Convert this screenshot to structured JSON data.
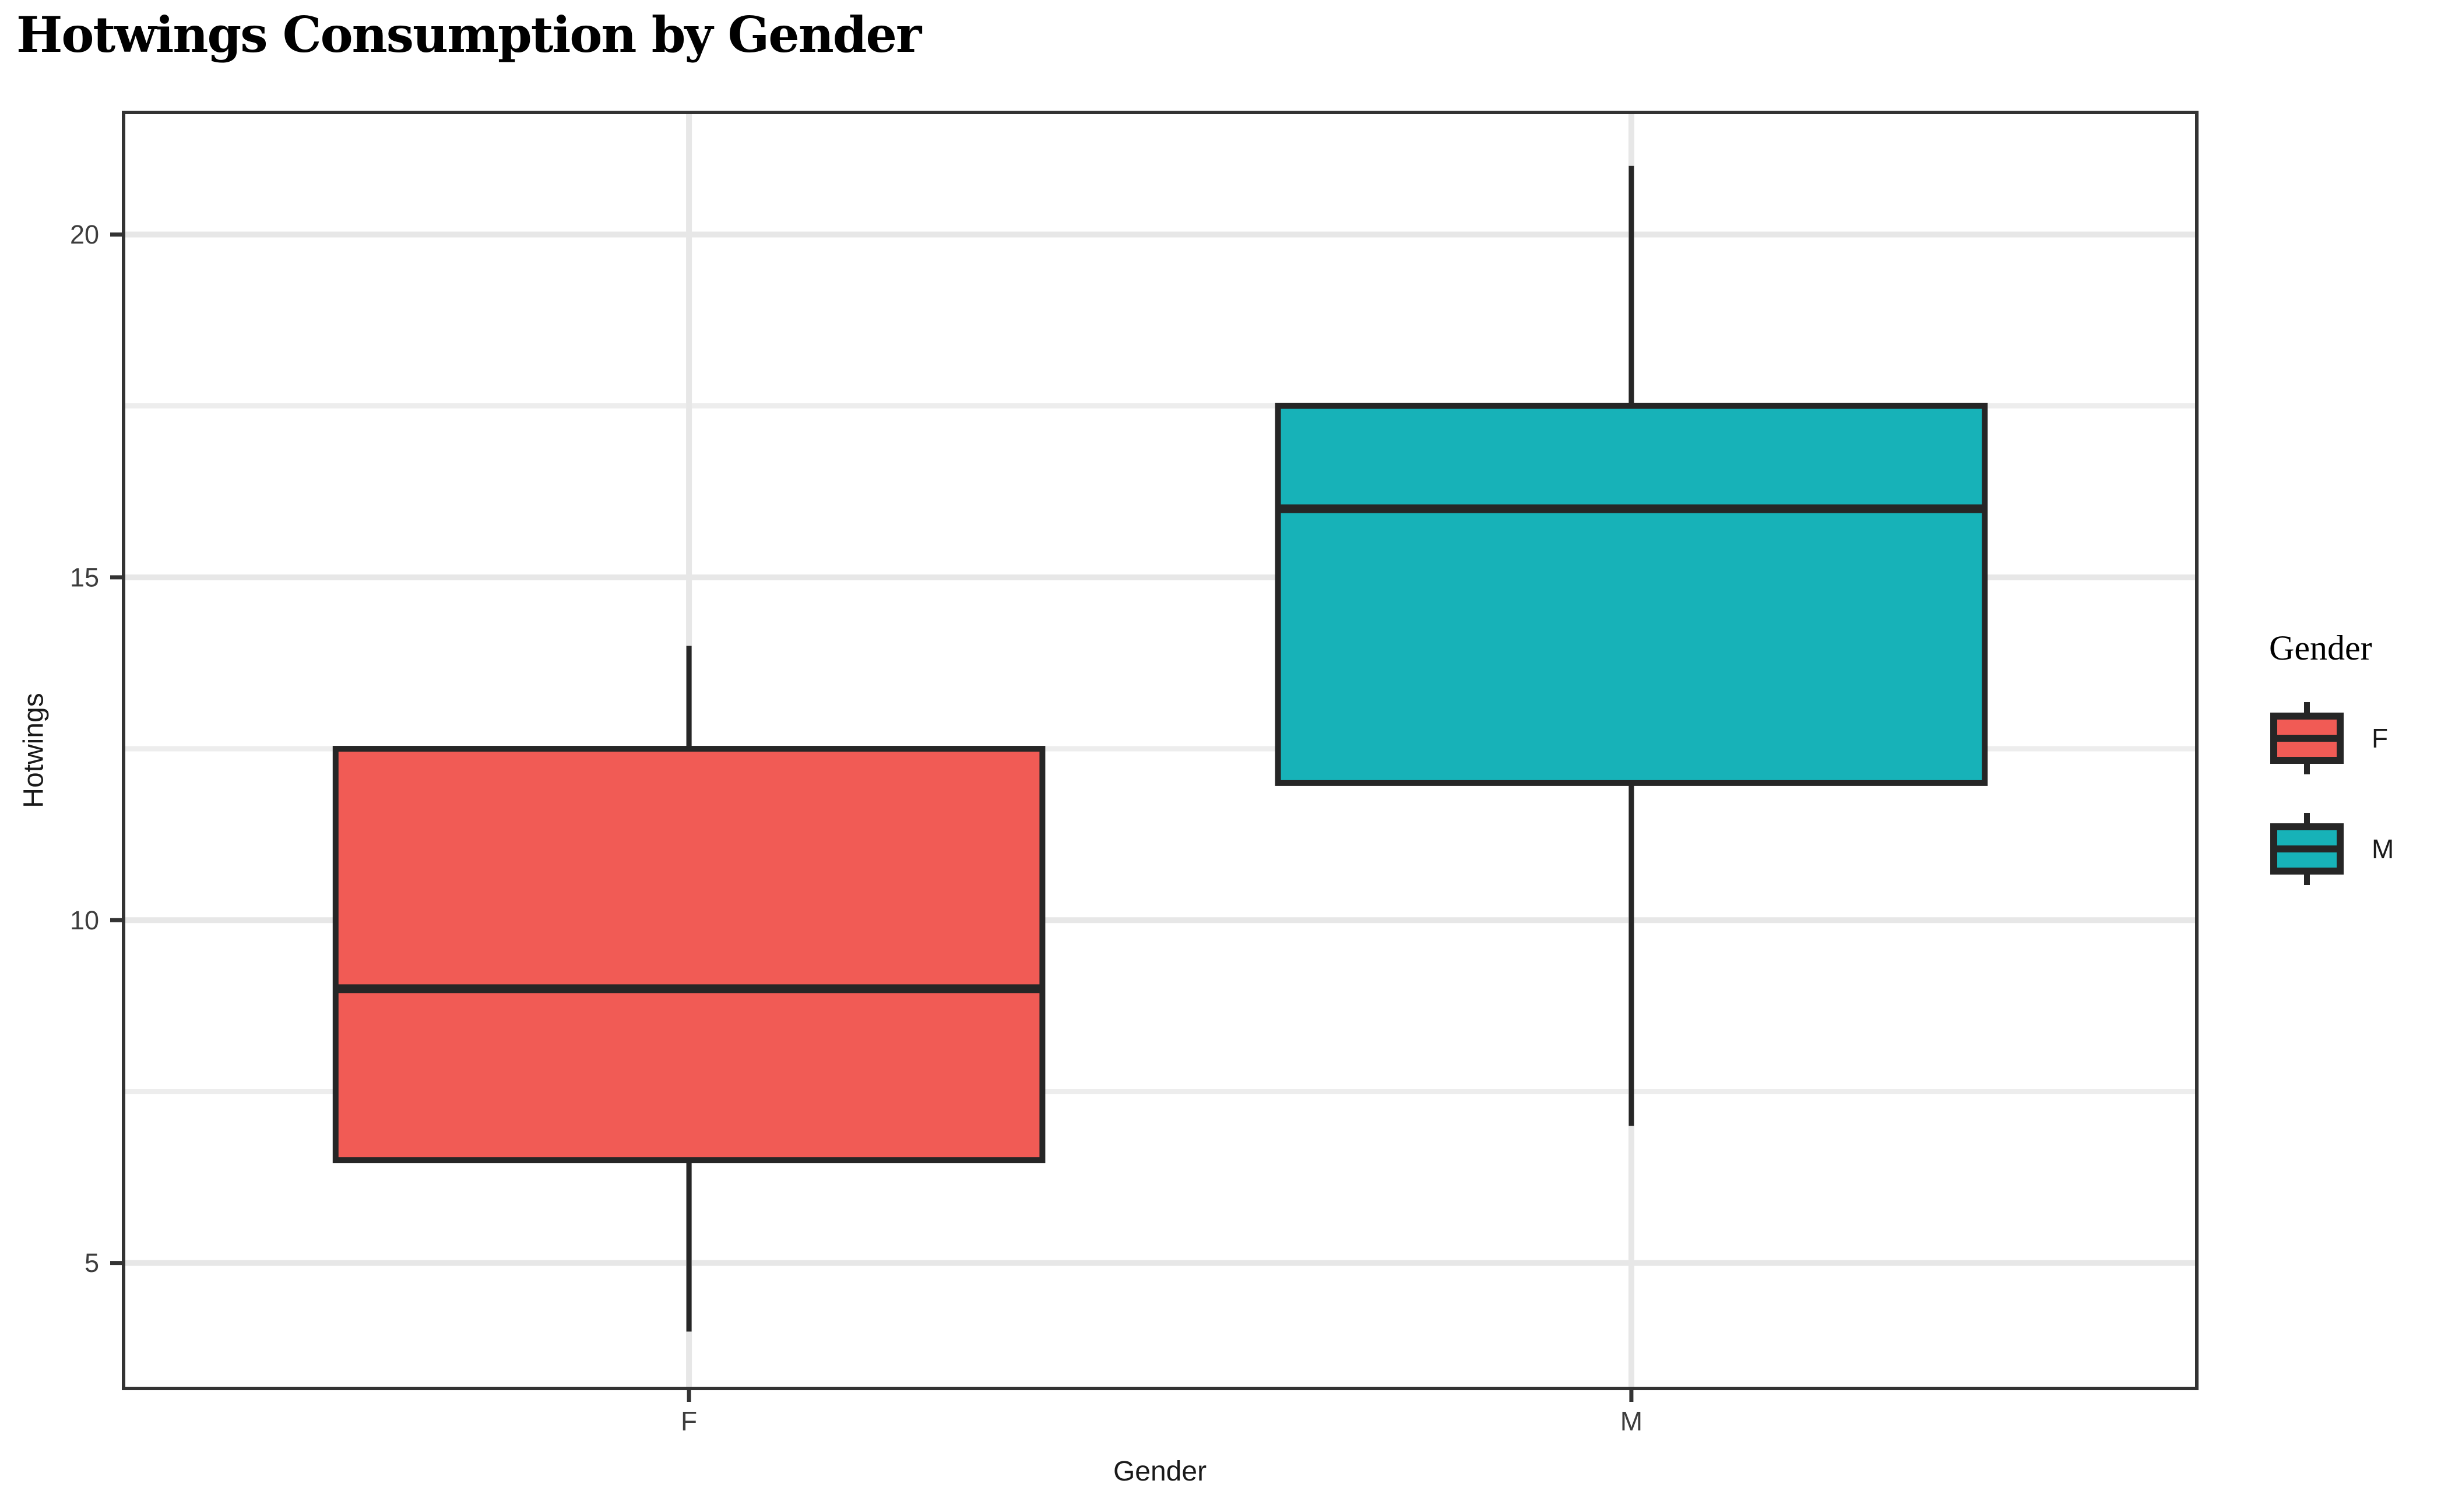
{
  "chart_data": {
    "type": "boxplot",
    "title": "Hotwings Consumption by Gender",
    "xlabel": "Gender",
    "ylabel": "Hotwings",
    "categories": [
      "F",
      "M"
    ],
    "series": [
      {
        "name": "F",
        "min": 4,
        "q1": 6.5,
        "median": 9,
        "q3": 12.5,
        "max": 14,
        "fill": "#F15B55"
      },
      {
        "name": "M",
        "min": 7,
        "q1": 12,
        "median": 16,
        "q3": 17.5,
        "max": 21,
        "fill": "#17B2B8"
      }
    ],
    "yticks": [
      5,
      10,
      15,
      20
    ],
    "minor_yticks": [
      7.5,
      12.5,
      17.5
    ],
    "ylim": [
      3.17,
      21.78
    ],
    "grid": true,
    "legend_position": "right",
    "legend": {
      "title": "Gender",
      "entries": [
        {
          "label": "F",
          "color": "#F15B55"
        },
        {
          "label": "M",
          "color": "#17B2B8"
        }
      ]
    },
    "style": {
      "box_border_color": "#262626",
      "panel_border_color": "#333333",
      "grid_major_color": "#E7E7E7",
      "grid_minor_color": "#EDEDED",
      "tick_color": "#333333",
      "text_color": "#3D3D3D"
    }
  }
}
